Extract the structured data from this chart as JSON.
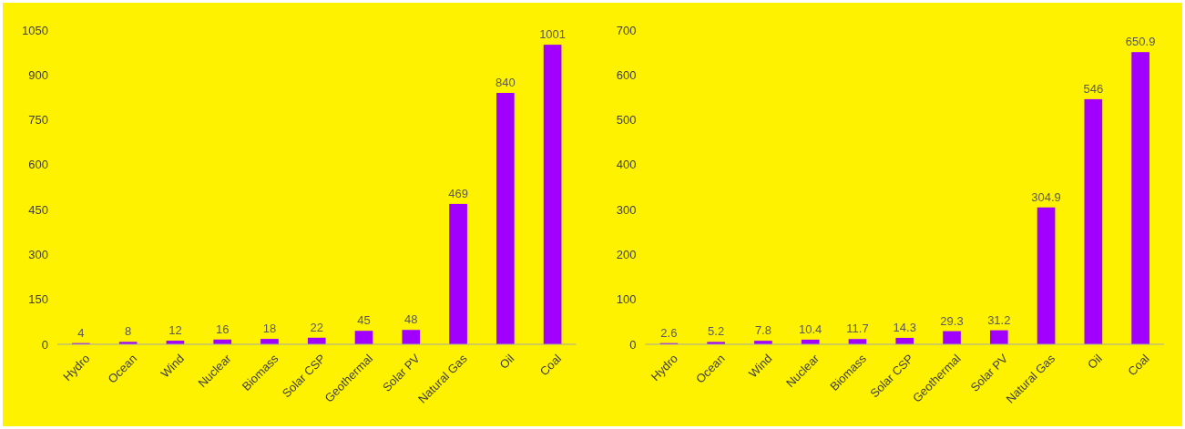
{
  "chart_data": [
    {
      "type": "bar",
      "categories": [
        "Hydro",
        "Ocean",
        "Wind",
        "Nuclear",
        "Biomass",
        "Solar CSP",
        "Geothermal",
        "Solar PV",
        "Natural Gas",
        "Oil",
        "Coal"
      ],
      "values": [
        4,
        8,
        12,
        16,
        18,
        22,
        45,
        48,
        469,
        840,
        1001
      ],
      "color": "#a100ff",
      "ylim": [
        0,
        1050
      ],
      "yticks": [
        0,
        150,
        300,
        450,
        600,
        750,
        900,
        1050
      ],
      "grid": false,
      "data_labels": true
    },
    {
      "type": "bar",
      "categories": [
        "Hydro",
        "Ocean",
        "Wind",
        "Nuclear",
        "Biomass",
        "Solar CSP",
        "Geothermal",
        "Solar PV",
        "Natural Gas",
        "Oil",
        "Coal"
      ],
      "values": [
        2.6,
        5.2,
        7.8,
        10.4,
        11.7,
        14.3,
        29.3,
        31.2,
        304.9,
        546,
        650.9
      ],
      "color": "#a100ff",
      "ylim": [
        0,
        700
      ],
      "yticks": [
        0,
        100,
        200,
        300,
        400,
        500,
        600,
        700
      ],
      "grid": false,
      "data_labels": true
    }
  ]
}
